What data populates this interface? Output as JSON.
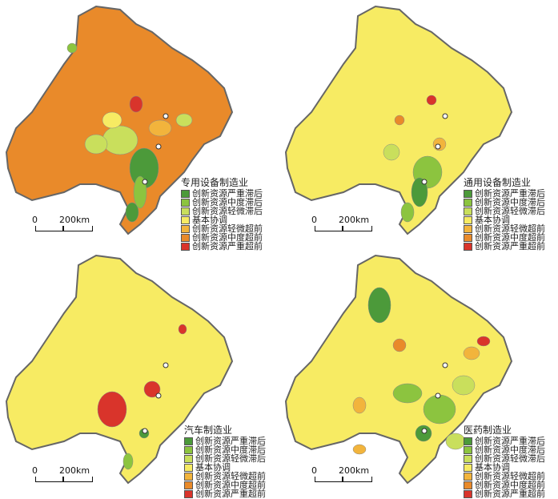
{
  "legend_items": [
    {
      "label": "创新资源严重滞后",
      "color": "#4c9a3a"
    },
    {
      "label": "创新资源中度滞后",
      "color": "#8cc43f"
    },
    {
      "label": "创新资源轻微滞后",
      "color": "#c9df5c"
    },
    {
      "label": "基本协调",
      "color": "#f7eb63"
    },
    {
      "label": "创新资源轻微超前",
      "color": "#f2b43c"
    },
    {
      "label": "创新资源中度超前",
      "color": "#e98a2a"
    },
    {
      "label": "创新资源严重超前",
      "color": "#d9342b"
    }
  ],
  "scale": {
    "zero": "0",
    "distance": "200km"
  },
  "panels": [
    {
      "title": "专用设备制造业",
      "base_color": "#e98a2a"
    },
    {
      "title": "通用设备制造业",
      "base_color": "#f7eb63"
    },
    {
      "title": "汽车制造业",
      "base_color": "#f7eb63"
    },
    {
      "title": "医药制造业",
      "base_color": "#f7eb63"
    }
  ]
}
